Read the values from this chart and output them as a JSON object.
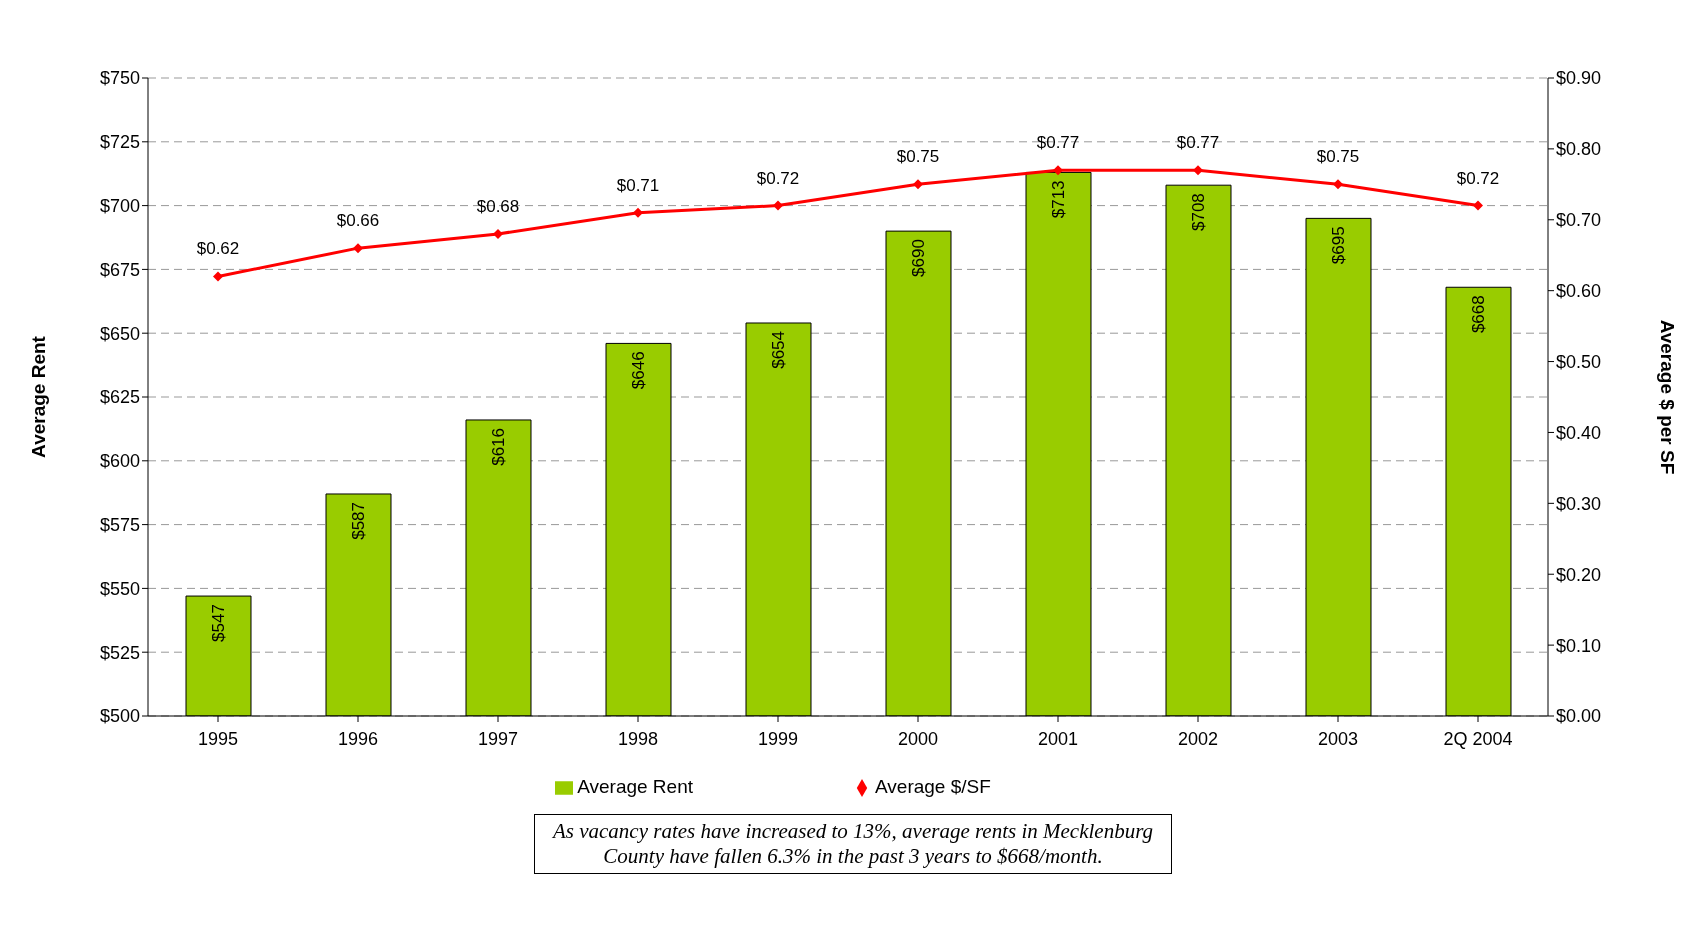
{
  "chart_data": {
    "type": "bar",
    "ylabel": "Average Rent",
    "y2label": "Average $ per SF",
    "categories": [
      "1995",
      "1996",
      "1997",
      "1998",
      "1999",
      "2000",
      "2001",
      "2002",
      "2003",
      "2Q 2004"
    ],
    "series": [
      {
        "name": "Average Rent",
        "color": "#99cc00",
        "values": [
          547,
          587,
          616,
          646,
          654,
          690,
          713,
          708,
          695,
          668
        ],
        "value_labels": [
          "$547",
          "$587",
          "$616",
          "$646",
          "$654",
          "$690",
          "$713",
          "$708",
          "$695",
          "$668"
        ]
      },
      {
        "name": "Average $/SF",
        "type": "line",
        "axis": "y2",
        "color": "#ff0000",
        "marker": "diamond",
        "values": [
          0.62,
          0.66,
          0.68,
          0.71,
          0.72,
          0.75,
          0.77,
          0.77,
          0.75,
          0.72
        ],
        "value_labels": [
          "$0.62",
          "$0.66",
          "$0.68",
          "$0.71",
          "$0.72",
          "$0.75",
          "$0.77",
          "$0.77",
          "$0.75",
          "$0.72"
        ]
      }
    ],
    "ylim": [
      500,
      750
    ],
    "yticks": [
      {
        "value": 500,
        "label": "$500"
      },
      {
        "value": 525,
        "label": "$525"
      },
      {
        "value": 550,
        "label": "$550"
      },
      {
        "value": 575,
        "label": "$575"
      },
      {
        "value": 600,
        "label": "$600"
      },
      {
        "value": 625,
        "label": "$625"
      },
      {
        "value": 650,
        "label": "$650"
      },
      {
        "value": 675,
        "label": "$675"
      },
      {
        "value": 700,
        "label": "$700"
      },
      {
        "value": 725,
        "label": "$725"
      },
      {
        "value": 750,
        "label": "$750"
      }
    ],
    "y2lim": [
      0,
      0.9
    ],
    "y2ticks": [
      {
        "value": 0,
        "label": "$0.00"
      },
      {
        "value": 0.1,
        "label": "$0.10"
      },
      {
        "value": 0.2,
        "label": "$0.20"
      },
      {
        "value": 0.3,
        "label": "$0.30"
      },
      {
        "value": 0.4,
        "label": "$0.40"
      },
      {
        "value": 0.5,
        "label": "$0.50"
      },
      {
        "value": 0.6,
        "label": "$0.60"
      },
      {
        "value": 0.7,
        "label": "$0.70"
      },
      {
        "value": 0.8,
        "label": "$0.80"
      },
      {
        "value": 0.9,
        "label": "$0.90"
      }
    ],
    "grid": "y",
    "legend": "bottom",
    "annotations": [
      "As vacancy rates have increased to 13%, average rents in Mecklenburg County have fallen 6.3% in the past 3 years to $668/month."
    ]
  }
}
